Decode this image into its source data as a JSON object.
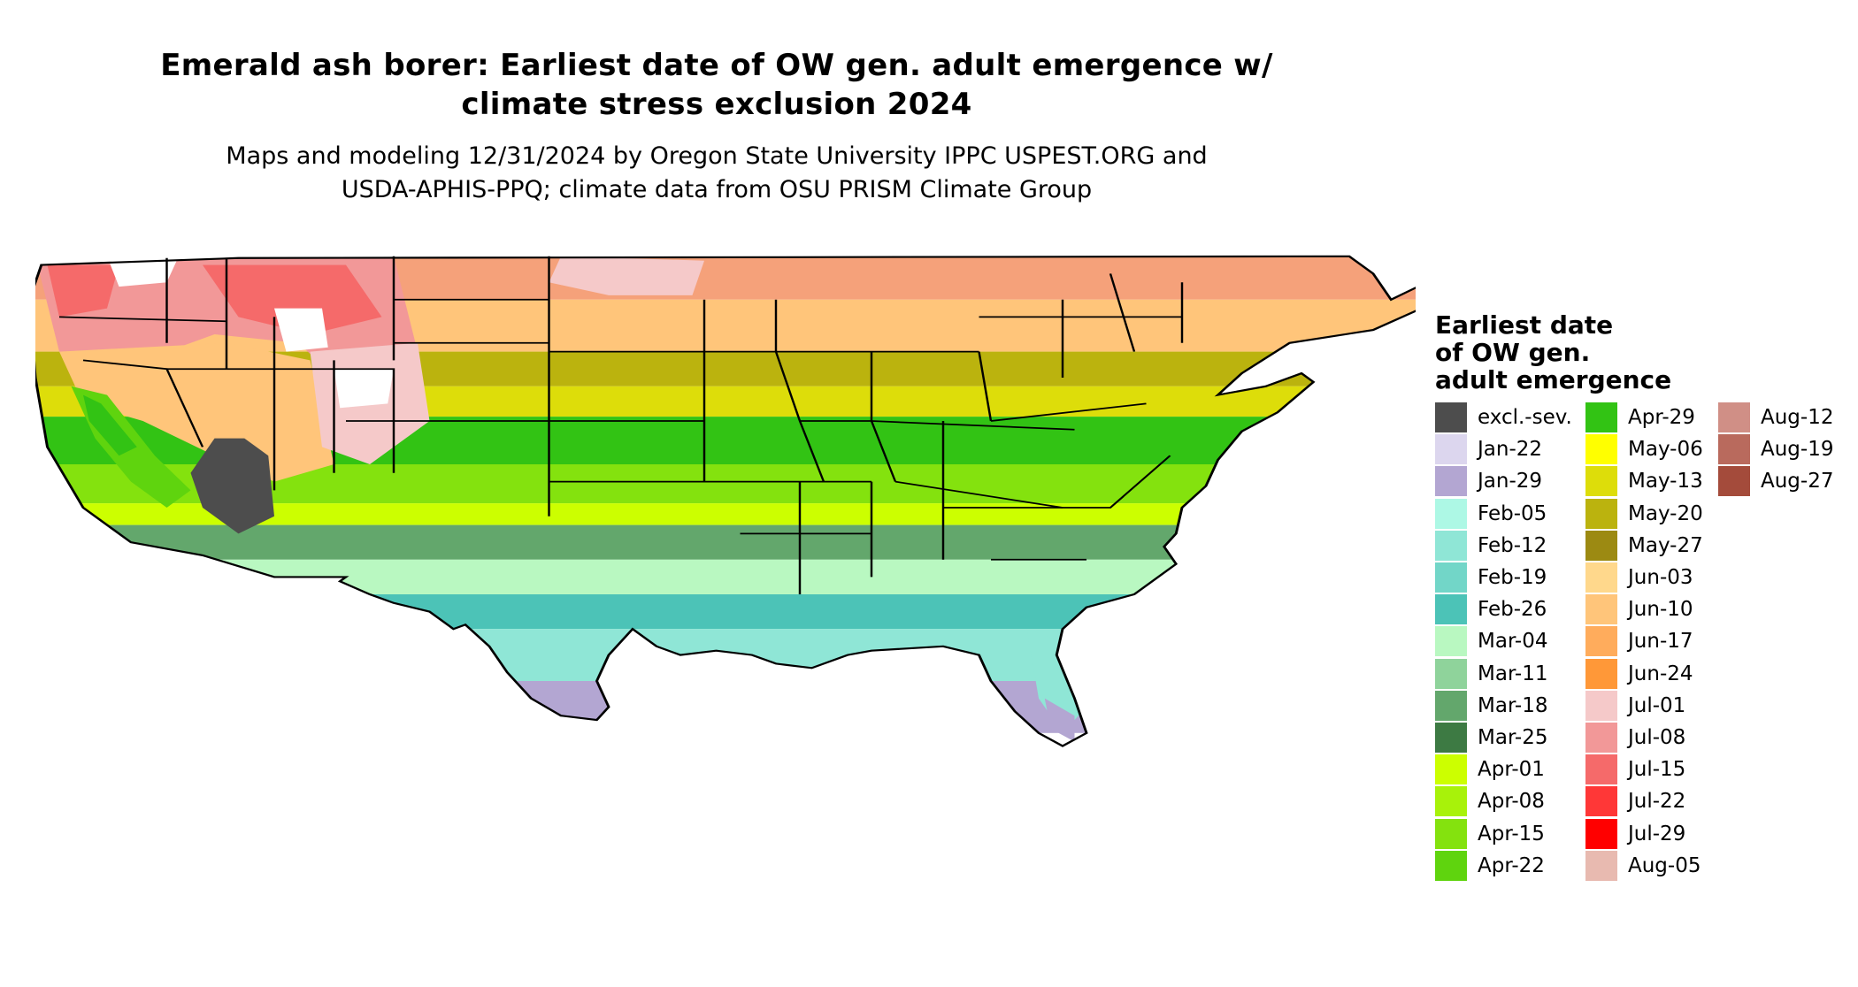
{
  "title_line1": "Emerald ash borer: Earliest date of OW gen. adult emergence w/",
  "title_line2": "climate stress exclusion 2024",
  "subtitle_line1": "Maps and modeling 12/31/2024 by Oregon State University IPPC USPEST.ORG and",
  "subtitle_line2": "USDA-APHIS-PPQ; climate data from OSU PRISM Climate Group",
  "legend": {
    "title_line1": "Earliest date",
    "title_line2": "of OW gen.",
    "title_line3": "adult emergence",
    "columns": [
      [
        {
          "label": "excl.-sev.",
          "color": "#4d4d4d"
        },
        {
          "label": "Jan-22",
          "color": "#dcd6ee"
        },
        {
          "label": "Jan-29",
          "color": "#b3a6d2"
        },
        {
          "label": "Feb-05",
          "color": "#adf8e5"
        },
        {
          "label": "Feb-12",
          "color": "#8fe6d6"
        },
        {
          "label": "Feb-19",
          "color": "#72d6c8"
        },
        {
          "label": "Feb-26",
          "color": "#4cc3b7"
        },
        {
          "label": "Mar-04",
          "color": "#b9f8c1"
        },
        {
          "label": "Mar-11",
          "color": "#8fd39b"
        },
        {
          "label": "Mar-18",
          "color": "#63a76c"
        },
        {
          "label": "Mar-25",
          "color": "#3d7a43"
        },
        {
          "label": "Apr-01",
          "color": "#ccff00"
        },
        {
          "label": "Apr-08",
          "color": "#a8f20a"
        },
        {
          "label": "Apr-15",
          "color": "#84e20e"
        },
        {
          "label": "Apr-22",
          "color": "#5fd40e"
        }
      ],
      [
        {
          "label": "Apr-29",
          "color": "#32c314"
        },
        {
          "label": "May-06",
          "color": "#ffff00"
        },
        {
          "label": "May-13",
          "color": "#dddd0a"
        },
        {
          "label": "May-20",
          "color": "#bbb30e"
        },
        {
          "label": "May-27",
          "color": "#9c8a12"
        },
        {
          "label": "Jun-03",
          "color": "#ffd88c"
        },
        {
          "label": "Jun-10",
          "color": "#ffc57a"
        },
        {
          "label": "Jun-17",
          "color": "#ffac5c"
        },
        {
          "label": "Jun-24",
          "color": "#ff9838"
        },
        {
          "label": "Jul-01",
          "color": "#f5c9c9"
        },
        {
          "label": "Jul-08",
          "color": "#f29898"
        },
        {
          "label": "Jul-15",
          "color": "#f56a6a"
        },
        {
          "label": "Jul-22",
          "color": "#ff3737"
        },
        {
          "label": "Jul-29",
          "color": "#ff0000"
        },
        {
          "label": "Aug-05",
          "color": "#e8bab0"
        }
      ],
      [
        {
          "label": "Aug-12",
          "color": "#d08f86"
        },
        {
          "label": "Aug-19",
          "color": "#b96a5d"
        },
        {
          "label": "Aug-27",
          "color": "#a44b3b"
        }
      ]
    ]
  }
}
